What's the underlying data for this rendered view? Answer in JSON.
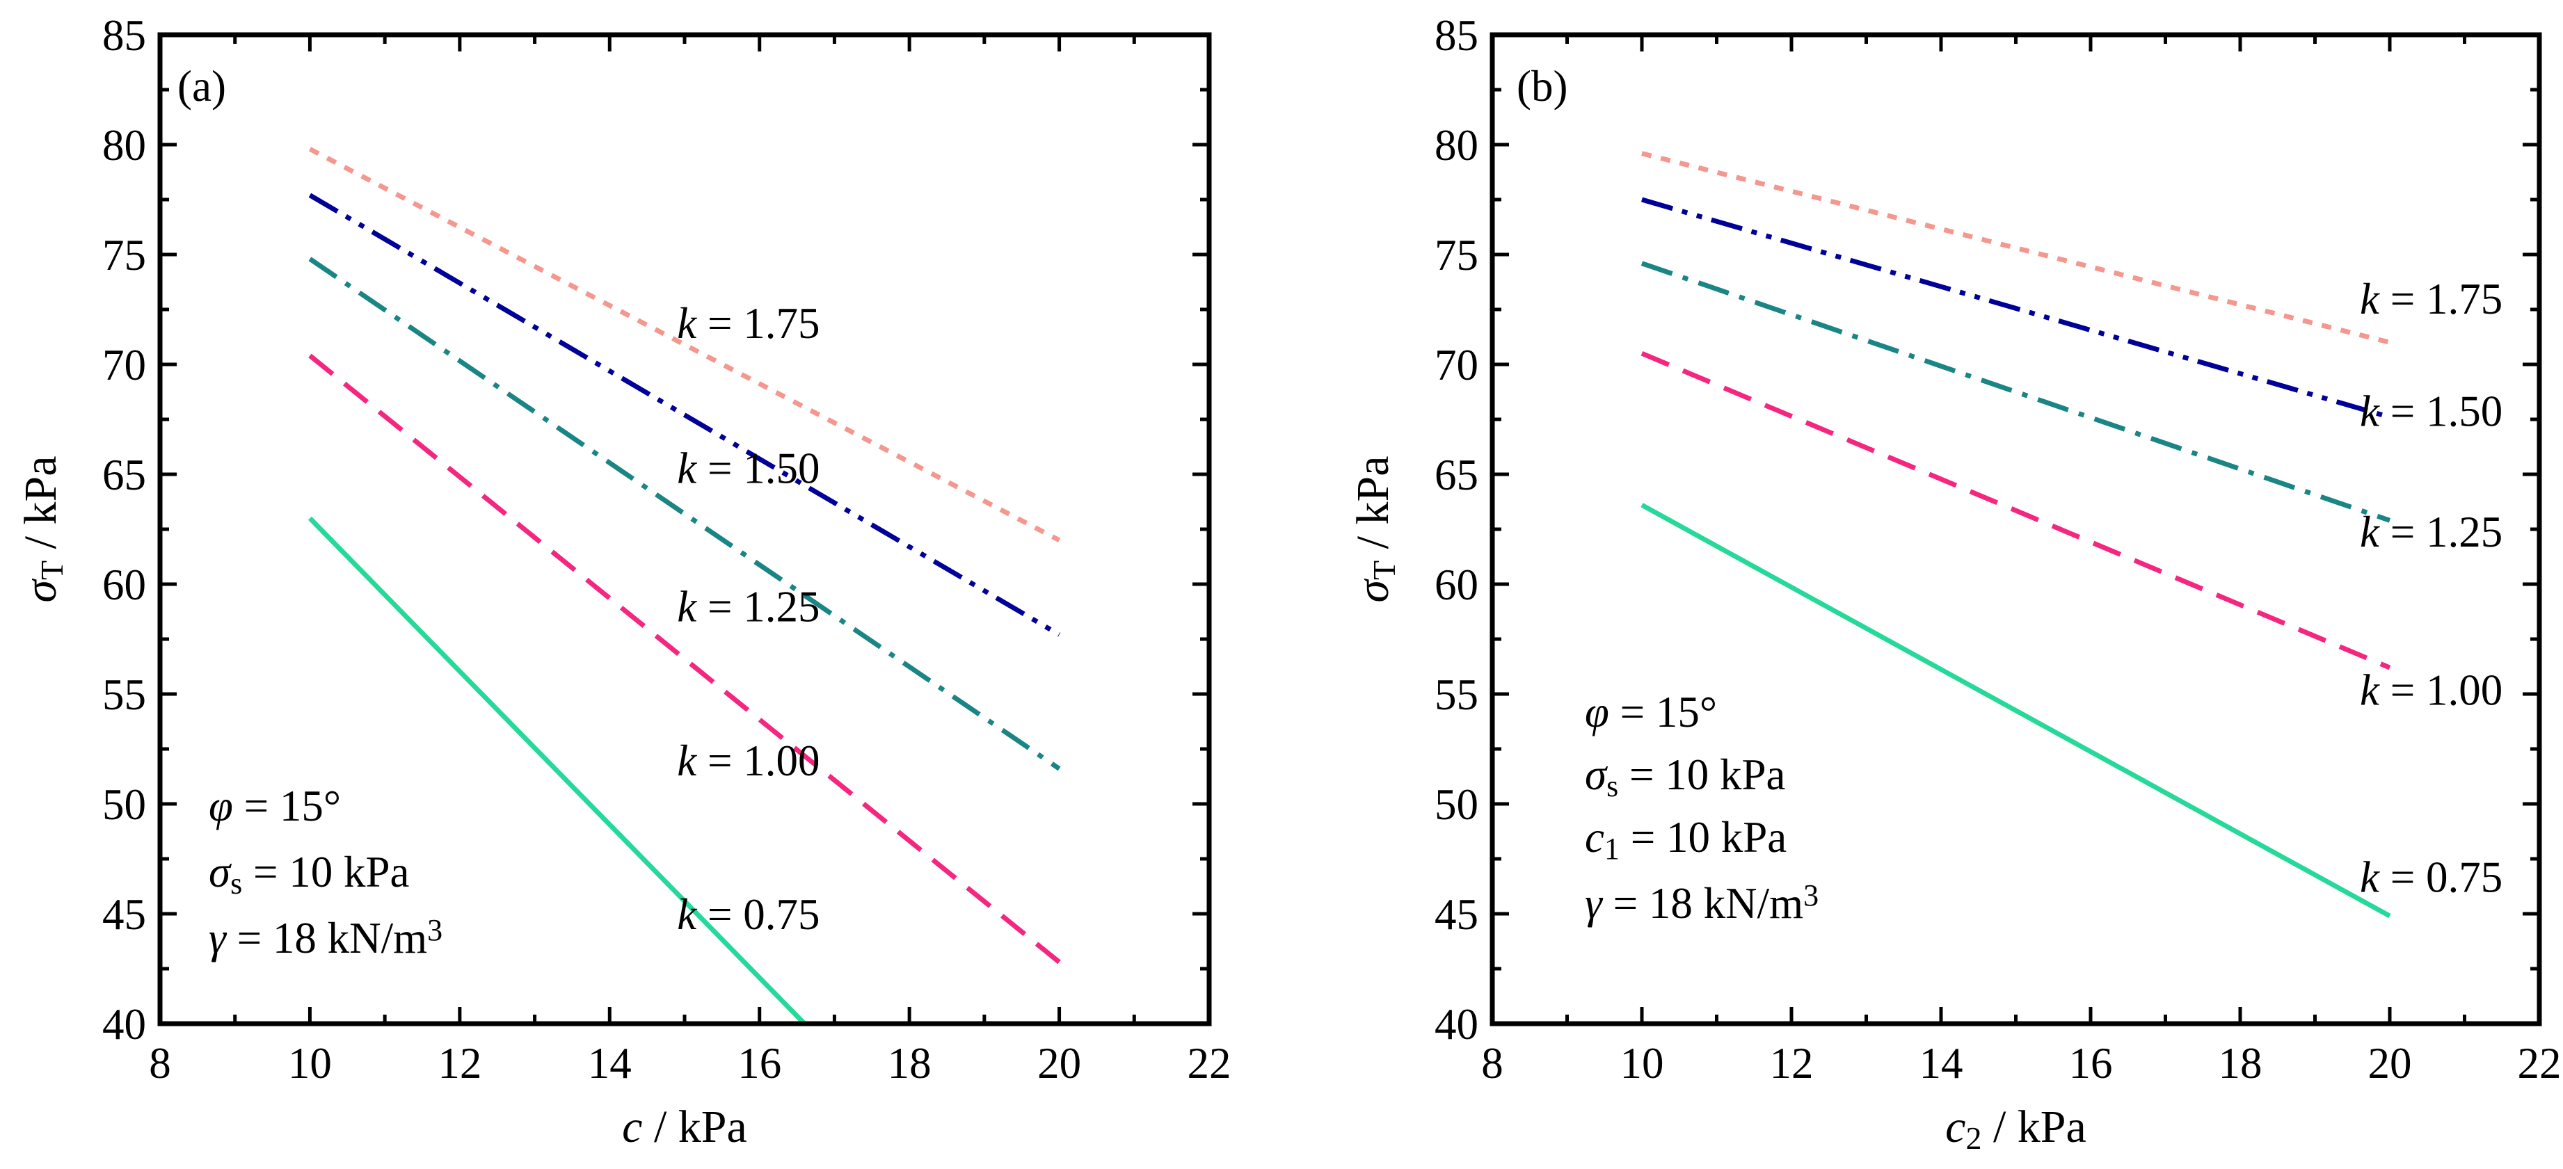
{
  "chart_data": [
    {
      "type": "line",
      "panel": "(a)",
      "xlabel": {
        "var": "c",
        "sub": "",
        "unit": " / kPa"
      },
      "ylabel": {
        "var": "σ",
        "sub": "T",
        "unit": " / kPa"
      },
      "xlim": [
        8,
        22
      ],
      "ylim": [
        40,
        85
      ],
      "xticks": [
        8,
        10,
        12,
        14,
        16,
        18,
        20,
        22
      ],
      "yticks": [
        40,
        45,
        50,
        55,
        60,
        65,
        70,
        75,
        80,
        85
      ],
      "grid": false,
      "series": [
        {
          "name": "k = 1.75",
          "k_var": "k",
          "k_text": " = 1.75",
          "color": "#F4978E",
          "style": "dot",
          "x": [
            10,
            20
          ],
          "y": [
            79.8,
            62.0
          ],
          "label_at": [
            14.9,
            71.9
          ]
        },
        {
          "name": "k = 1.50",
          "k_var": "k",
          "k_text": " = 1.50",
          "color": "#000099",
          "style": "dashdotdot",
          "x": [
            10,
            20
          ],
          "y": [
            77.7,
            57.7
          ],
          "label_at": [
            14.9,
            65.3
          ]
        },
        {
          "name": "k = 1.25",
          "k_var": "k",
          "k_text": " = 1.25",
          "color": "#1A8585",
          "style": "dashdot",
          "x": [
            10,
            20
          ],
          "y": [
            74.8,
            51.6
          ],
          "label_at": [
            14.9,
            59.0
          ]
        },
        {
          "name": "k = 1.00",
          "k_var": "k",
          "k_text": " = 1.00",
          "color": "#F5267F",
          "style": "dash",
          "x": [
            10,
            20
          ],
          "y": [
            70.4,
            42.8
          ],
          "label_at": [
            14.9,
            52.0
          ]
        },
        {
          "name": "k = 0.75",
          "k_var": "k",
          "k_text": " = 0.75",
          "color": "#26D99A",
          "style": "solid",
          "x": [
            10,
            16.6
          ],
          "y": [
            63.0,
            40.0
          ],
          "label_at": [
            14.9,
            45.0
          ]
        }
      ],
      "annotations": [
        {
          "var": "φ",
          "sub": "",
          "text": " = 15°"
        },
        {
          "var": "σ",
          "sub": "s",
          "text": " = 10 kPa"
        },
        {
          "var": "γ",
          "sub": "",
          "text": " = 18 kN/m",
          "sup": "3"
        }
      ]
    },
    {
      "type": "line",
      "panel": "(b)",
      "xlabel": {
        "var": "c",
        "sub": "2",
        "unit": " / kPa"
      },
      "ylabel": {
        "var": "σ",
        "sub": "T",
        "unit": " / kPa"
      },
      "xlim": [
        8,
        22
      ],
      "ylim": [
        40,
        85
      ],
      "xticks": [
        8,
        10,
        12,
        14,
        16,
        18,
        20,
        22
      ],
      "yticks": [
        40,
        45,
        50,
        55,
        60,
        65,
        70,
        75,
        80,
        85
      ],
      "grid": false,
      "series": [
        {
          "name": "k = 1.75",
          "k_var": "k",
          "k_text": " = 1.75",
          "color": "#F4978E",
          "style": "dot",
          "x": [
            10,
            20
          ],
          "y": [
            79.6,
            71.0
          ],
          "label_at": [
            19.6,
            73.0
          ]
        },
        {
          "name": "k = 1.50",
          "k_var": "k",
          "k_text": " = 1.50",
          "color": "#000099",
          "style": "dashdotdot",
          "x": [
            10,
            20
          ],
          "y": [
            77.5,
            67.6
          ],
          "label_at": [
            19.6,
            67.9
          ]
        },
        {
          "name": "k = 1.25",
          "k_var": "k",
          "k_text": " = 1.25",
          "color": "#1A8585",
          "style": "dashdot",
          "x": [
            10,
            20
          ],
          "y": [
            74.6,
            62.9
          ],
          "label_at": [
            19.6,
            62.4
          ]
        },
        {
          "name": "k = 1.00",
          "k_var": "k",
          "k_text": " = 1.00",
          "color": "#F5267F",
          "style": "dash",
          "x": [
            10,
            20
          ],
          "y": [
            70.5,
            56.2
          ],
          "label_at": [
            19.6,
            55.2
          ]
        },
        {
          "name": "k = 0.75",
          "k_var": "k",
          "k_text": " = 0.75",
          "color": "#26D99A",
          "style": "solid",
          "x": [
            10,
            20
          ],
          "y": [
            63.6,
            44.9
          ],
          "label_at": [
            19.6,
            46.7
          ]
        }
      ],
      "annotations": [
        {
          "var": "φ",
          "sub": "",
          "text": " = 15°"
        },
        {
          "var": "σ",
          "sub": "s",
          "text": " = 10 kPa"
        },
        {
          "var": "c",
          "sub": "1",
          "text": " = 10 kPa"
        },
        {
          "var": "γ",
          "sub": "",
          "text": " = 18 kN/m",
          "sup": "3"
        }
      ]
    }
  ]
}
